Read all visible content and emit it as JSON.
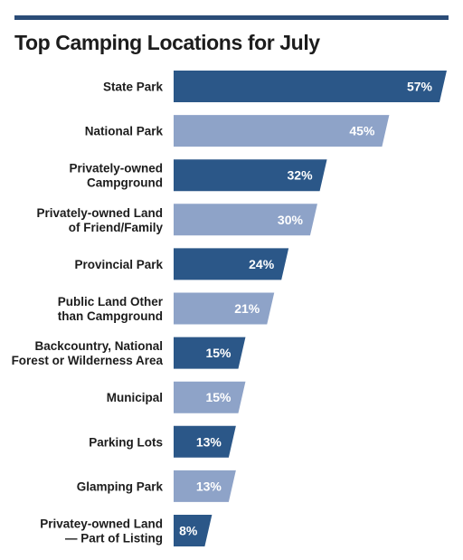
{
  "title": "Top Camping Locations for July",
  "colors": {
    "dark": "#2b5788",
    "light": "#8ea3c8",
    "topbar": "#2b4c77"
  },
  "chart_data": {
    "type": "bar",
    "orientation": "horizontal",
    "title": "Top Camping Locations for July",
    "categories": [
      [
        "State Park"
      ],
      [
        "National Park"
      ],
      [
        "Privately-owned",
        "Campground"
      ],
      [
        "Privately-owned Land",
        "of Friend/Family"
      ],
      [
        "Provincial Park"
      ],
      [
        "Public Land Other",
        "than Campground"
      ],
      [
        "Backcountry, National",
        "Forest or Wilderness Area"
      ],
      [
        "Municipal"
      ],
      [
        "Parking Lots"
      ],
      [
        "Glamping Park"
      ],
      [
        "Privatey-owned Land",
        "— Part of Listing"
      ]
    ],
    "values": [
      57,
      45,
      32,
      30,
      24,
      21,
      15,
      15,
      13,
      13,
      8
    ],
    "value_labels": [
      "57%",
      "45%",
      "32%",
      "30%",
      "24%",
      "21%",
      "15%",
      "15%",
      "13%",
      "13%",
      "8%"
    ],
    "unit": "%",
    "xlim": [
      0,
      57
    ],
    "grid": false,
    "legend": "none"
  }
}
